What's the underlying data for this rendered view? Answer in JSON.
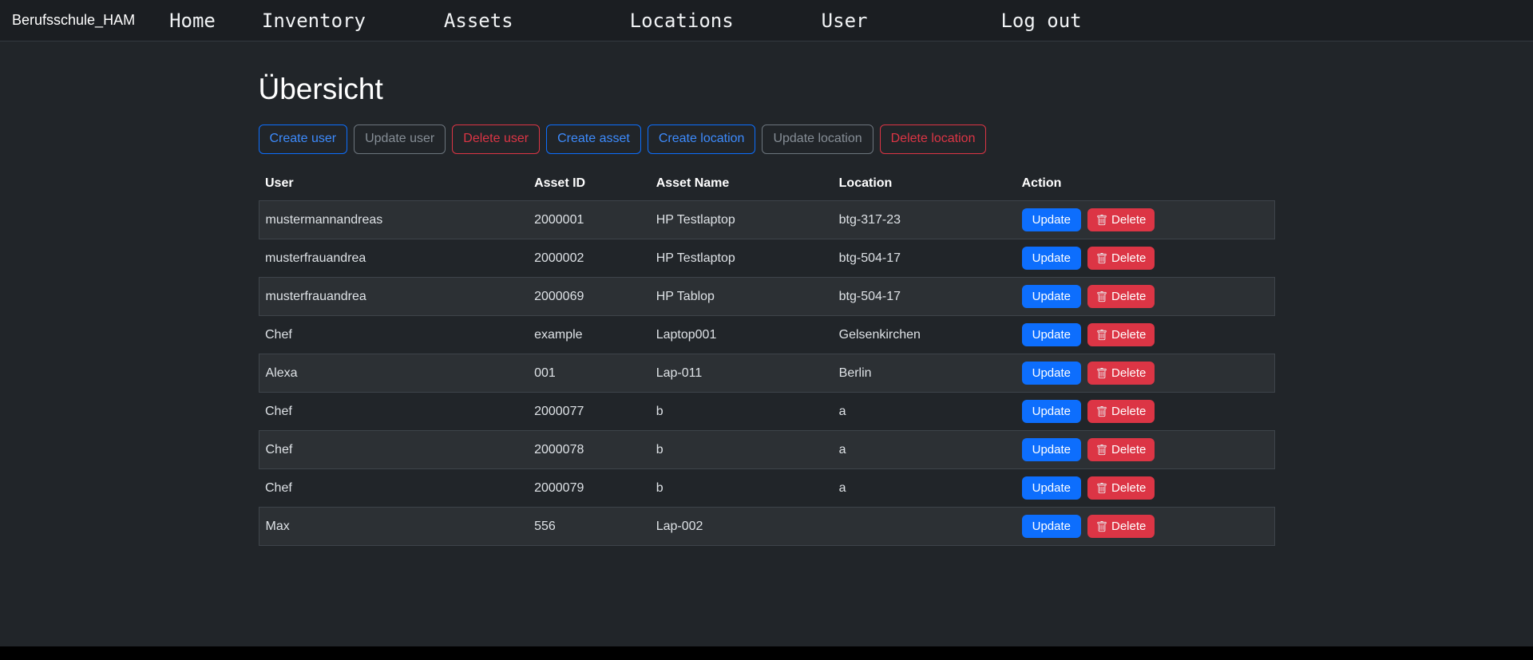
{
  "navbar": {
    "brand": "Berufsschule_HAM",
    "items": [
      {
        "label": "Home"
      },
      {
        "label": "Inventory"
      },
      {
        "label": "Assets"
      },
      {
        "label": "Locations"
      },
      {
        "label": "User"
      },
      {
        "label": "Log out"
      }
    ]
  },
  "page": {
    "title": "Übersicht"
  },
  "toolbar": {
    "buttons": [
      {
        "label": "Create user",
        "variant": "primary"
      },
      {
        "label": "Update user",
        "variant": "secondary"
      },
      {
        "label": "Delete user",
        "variant": "danger"
      },
      {
        "label": "Create asset",
        "variant": "primary"
      },
      {
        "label": "Create location",
        "variant": "primary"
      },
      {
        "label": "Update location",
        "variant": "secondary"
      },
      {
        "label": "Delete location",
        "variant": "danger"
      }
    ]
  },
  "table": {
    "headers": [
      "User",
      "Asset ID",
      "Asset Name",
      "Location",
      "Action"
    ],
    "action_buttons": {
      "update_label": "Update",
      "delete_label": "Delete",
      "delete_icon": "trash-icon"
    },
    "rows": [
      {
        "user": "mustermannandreas",
        "asset_id": "2000001",
        "asset_name": "HP Testlaptop",
        "location": "btg-317-23"
      },
      {
        "user": "musterfrauandrea",
        "asset_id": "2000002",
        "asset_name": "HP Testlaptop",
        "location": "btg-504-17"
      },
      {
        "user": "musterfrauandrea",
        "asset_id": "2000069",
        "asset_name": "HP Tablop",
        "location": "btg-504-17"
      },
      {
        "user": "Chef",
        "asset_id": "example",
        "asset_name": "Laptop001",
        "location": "Gelsenkirchen"
      },
      {
        "user": "Alexa",
        "asset_id": "001",
        "asset_name": "Lap-011",
        "location": "Berlin"
      },
      {
        "user": "Chef",
        "asset_id": "2000077",
        "asset_name": "b",
        "location": "a"
      },
      {
        "user": "Chef",
        "asset_id": "2000078",
        "asset_name": "b",
        "location": "a"
      },
      {
        "user": "Chef",
        "asset_id": "2000079",
        "asset_name": "b",
        "location": "a"
      },
      {
        "user": "Max",
        "asset_id": "556",
        "asset_name": "Lap-002",
        "location": ""
      }
    ]
  },
  "colors": {
    "navbar_bg": "#1b1e22",
    "page_bg": "#212529",
    "primary": "#0d6efd",
    "secondary": "#6c757d",
    "danger": "#dc3545",
    "stripe_row_bg": "#2c3034",
    "border": "#3e444a"
  }
}
